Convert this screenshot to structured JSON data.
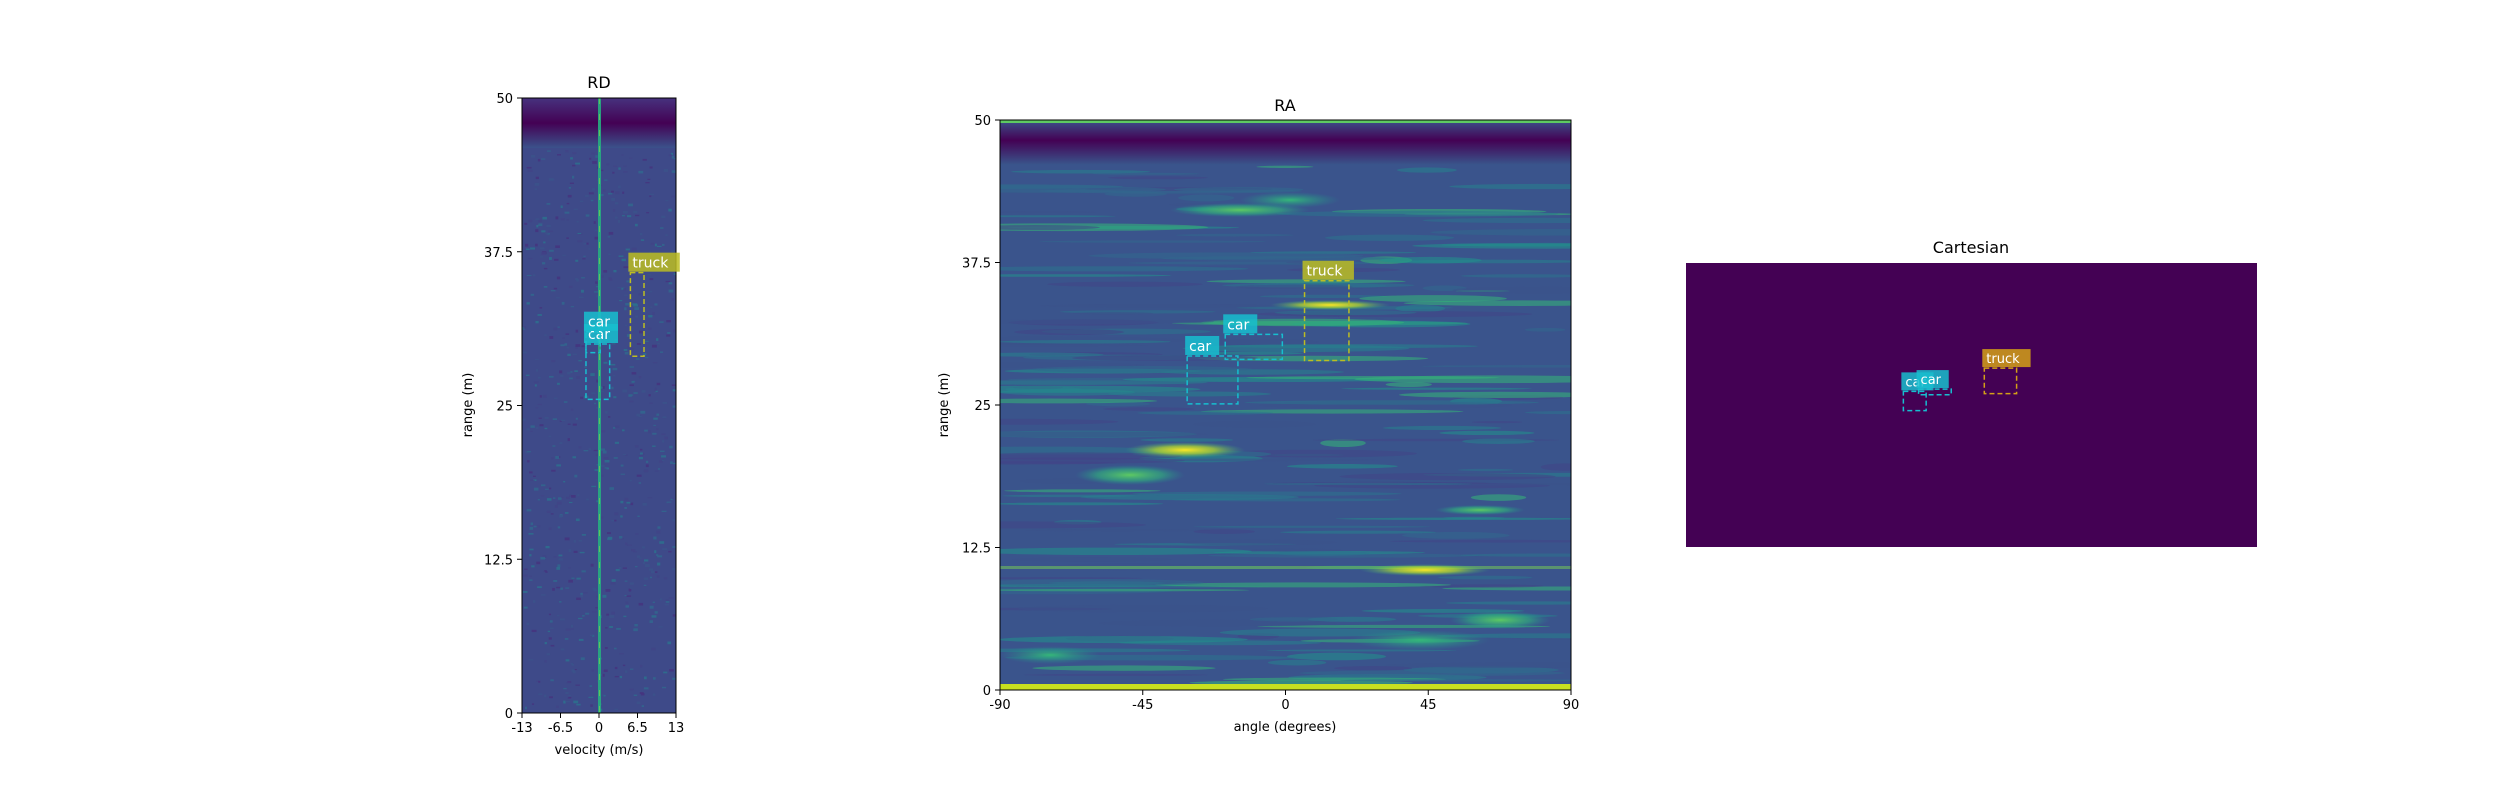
{
  "colors": {
    "viridis_dark": "#440154",
    "viridis_blue": "#3b528b",
    "viridis_teal": "#21918c",
    "viridis_green": "#5ec962",
    "viridis_yellow": "#fde725",
    "car_box": "#17becf",
    "truck_box": "#bcbd22",
    "truck_box_cartesian": "#d4a017"
  },
  "chart_data": [
    {
      "type": "heatmap",
      "title": "RD",
      "xlabel": "velocity (m/s)",
      "ylabel": "range (m)",
      "xlim": [
        -13,
        13
      ],
      "ylim": [
        0,
        50
      ],
      "xticks": [
        "-13",
        "-6.5",
        "0",
        "6.5",
        "13"
      ],
      "yticks": [
        "0",
        "12.5",
        "25",
        "37.5",
        "50"
      ],
      "boxes": [
        {
          "label": "car",
          "x": [
            -2.2,
            1.8
          ],
          "y": [
            25.5,
            30.0
          ]
        },
        {
          "label": "car",
          "x": [
            -2.2,
            0.2
          ],
          "y": [
            29.3,
            31.0
          ]
        },
        {
          "label": "truck",
          "x": [
            5.3,
            7.6
          ],
          "y": [
            29.0,
            35.8
          ]
        }
      ]
    },
    {
      "type": "heatmap",
      "title": "RA",
      "xlabel": "angle (degrees)",
      "ylabel": "range (m)",
      "xlim": [
        -90,
        90
      ],
      "ylim": [
        0,
        50
      ],
      "xticks": [
        "-90",
        "-45",
        "0",
        "45",
        "90"
      ],
      "yticks": [
        "0",
        "12.5",
        "25",
        "37.5",
        "50"
      ],
      "boxes": [
        {
          "label": "car",
          "x": [
            -31,
            -15
          ],
          "y": [
            25.1,
            29.3
          ]
        },
        {
          "label": "car",
          "x": [
            -19,
            -1
          ],
          "y": [
            29.0,
            31.2
          ]
        },
        {
          "label": "truck",
          "x": [
            6,
            20
          ],
          "y": [
            28.9,
            35.9
          ]
        }
      ]
    },
    {
      "type": "heatmap",
      "title": "Cartesian",
      "boxes": [
        {
          "label": "car",
          "x": [
            -17.8,
            -11.8
          ],
          "y": [
            24.0,
            27.4
          ]
        },
        {
          "label": "car",
          "x": [
            -13.8,
            -5.2
          ],
          "y": [
            26.8,
            27.8
          ]
        },
        {
          "label": "truck",
          "x": [
            3.5,
            12.0
          ],
          "y": [
            27.0,
            31.5
          ]
        }
      ]
    }
  ]
}
